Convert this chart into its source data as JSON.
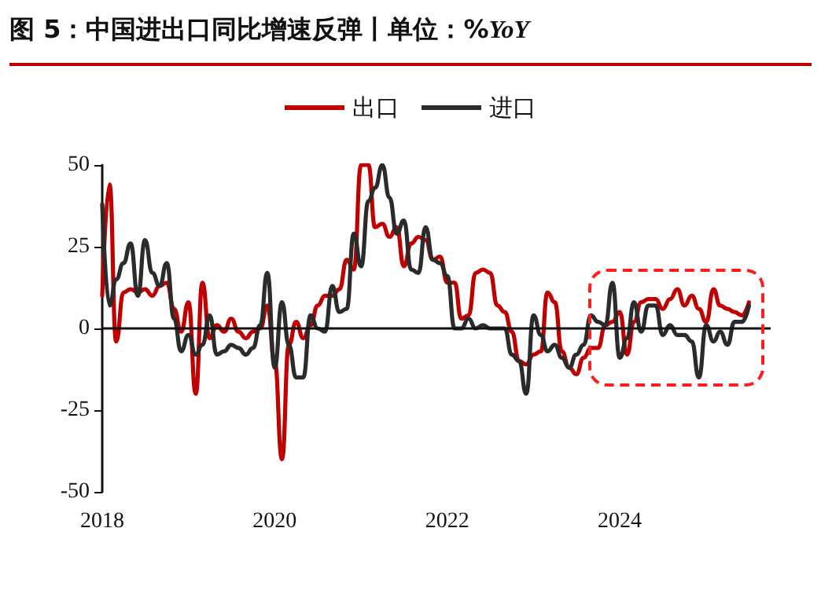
{
  "chart_data": {
    "type": "line",
    "title": "图 5：中国进出口同比增速反弹丨单位：%YoY",
    "ref_lines": [
      {
        "axis": "y",
        "value": 0
      }
    ],
    "x": [
      "2018-01",
      "2018-02",
      "2018-03",
      "2018-04",
      "2018-05",
      "2018-06",
      "2018-07",
      "2018-08",
      "2018-09",
      "2018-10",
      "2018-11",
      "2018-12",
      "2019-01",
      "2019-02",
      "2019-03",
      "2019-04",
      "2019-05",
      "2019-06",
      "2019-07",
      "2019-08",
      "2019-09",
      "2019-10",
      "2019-11",
      "2019-12",
      "2020-01",
      "2020-02",
      "2020-03",
      "2020-04",
      "2020-05",
      "2020-06",
      "2020-07",
      "2020-08",
      "2020-09",
      "2020-10",
      "2020-11",
      "2020-12",
      "2021-01",
      "2021-02",
      "2021-03",
      "2021-04",
      "2021-05",
      "2021-06",
      "2021-07",
      "2021-08",
      "2021-09",
      "2021-10",
      "2021-11",
      "2021-12",
      "2022-01",
      "2022-02",
      "2022-03",
      "2022-04",
      "2022-05",
      "2022-06",
      "2022-07",
      "2022-08",
      "2022-09",
      "2022-10",
      "2022-11",
      "2022-12",
      "2023-01",
      "2023-02",
      "2023-03",
      "2023-04",
      "2023-05",
      "2023-06",
      "2023-07",
      "2023-08",
      "2023-09",
      "2023-10",
      "2023-11",
      "2023-12",
      "2024-01",
      "2024-02",
      "2024-03",
      "2024-04",
      "2024-05",
      "2024-06",
      "2024-07",
      "2024-08",
      "2024-09",
      "2024-10",
      "2024-11",
      "2024-12",
      "2025-01",
      "2025-02",
      "2025-03",
      "2025-04",
      "2025-05",
      "2025-06",
      "2025-07"
    ],
    "series": [
      {
        "name": "出口",
        "color": "#c00000",
        "values": [
          10,
          44,
          -4,
          11,
          12,
          11,
          12,
          10,
          13,
          14,
          6,
          -1,
          8,
          -20,
          14,
          -3,
          1,
          -1,
          3,
          -1,
          -3,
          -1,
          0,
          7,
          -10,
          -40,
          -5,
          2,
          -3,
          1,
          7,
          10,
          10,
          12,
          21,
          18,
          50,
          50,
          31,
          32,
          28,
          31,
          19,
          26,
          28,
          27,
          21,
          22,
          14,
          14,
          3,
          4,
          17,
          18,
          17,
          7,
          5,
          -1,
          -10,
          -11,
          -8,
          -7,
          11,
          8,
          -7,
          -12,
          -14,
          -9,
          -6,
          -6,
          1,
          2,
          5,
          -8,
          2,
          8,
          9,
          9,
          6,
          9,
          12,
          7,
          10,
          6,
          2,
          12,
          7,
          6,
          5,
          4,
          8
        ]
      },
      {
        "name": "进口",
        "color": "#2b2b2b",
        "values": [
          38,
          7,
          15,
          20,
          26,
          10,
          27,
          17,
          13,
          20,
          3,
          -7,
          -2,
          -8,
          -5,
          4,
          -8,
          -7,
          -5,
          -6,
          -8,
          -6,
          1,
          17,
          -12,
          8,
          -5,
          -15,
          -15,
          4,
          0,
          -1,
          13,
          5,
          6,
          29,
          19,
          39,
          43,
          50,
          40,
          29,
          33,
          18,
          17,
          31,
          21,
          20,
          16,
          0,
          0,
          3,
          0,
          1,
          0,
          0,
          0,
          -8,
          -10,
          -20,
          4,
          -2,
          -7,
          -5,
          -9,
          -12,
          -8,
          -5,
          4,
          2,
          1,
          14,
          -9,
          -3,
          8,
          -1,
          7,
          7,
          -2,
          1,
          -2,
          -2,
          -4,
          -15,
          1,
          -4,
          -1,
          -5,
          2,
          2,
          7
        ]
      }
    ],
    "xlim": [
      "2018-01",
      "2025-10"
    ],
    "xticks": [
      "2018",
      "2020",
      "2022",
      "2024"
    ],
    "ylim": [
      -50,
      50
    ],
    "yticks": [
      -50,
      -25,
      0,
      25,
      50
    ],
    "legend": "top",
    "grid": false,
    "marker": "none",
    "line_style": "solid"
  }
}
